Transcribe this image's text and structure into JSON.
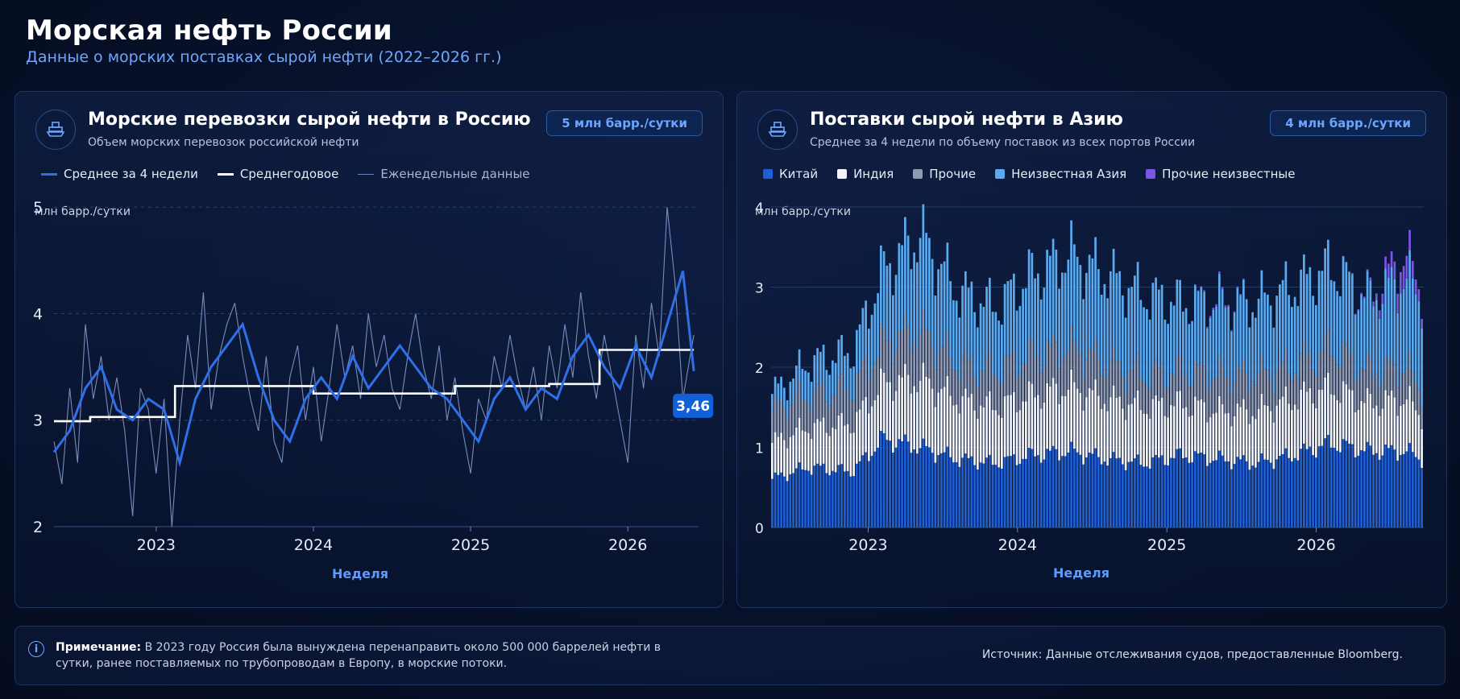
{
  "header": {
    "title": "Морская нефть России",
    "subtitle": "Данные о морских поставках сырой нефти (2022–2026 гг.)"
  },
  "left_panel": {
    "title": "Морские перевозки сырой нефти в Россию",
    "subtitle": "Объем морских перевозок российской нефти",
    "badge": "5 млн барр./сутки",
    "icon": "ship-icon",
    "legend": [
      "Среднее за 4 недели",
      "Среднегодовое",
      "Еженедельные данные"
    ]
  },
  "right_panel": {
    "title": "Поставки сырой нефти в Азию",
    "subtitle": "Среднее за 4 недели по объему поставок из всех портов России",
    "badge": "4 млн барр./сутки",
    "icon": "ship-icon"
  },
  "footer": {
    "note_label": "Примечание:",
    "note_text": "В 2023 году Россия была вынуждена перенаправить около 500 000 баррелей нефти в сутки, ранее поставляемых по трубопроводам в Европу, в морские потоки.",
    "source": "Источник: Данные отслеживания судов, предоставленные Bloomberg.",
    "icon": "info-icon"
  },
  "colors": {
    "avg4": "#2f6fe8",
    "annual": "#ffffff",
    "weekly": "#8aa2d6",
    "china": "#1e5fd4",
    "india": "#f2f4f8",
    "other": "#8f99b0",
    "unknown_asia": "#5aaaf0",
    "other_unknown": "#7a55e6",
    "accent": "#6aa6ff"
  },
  "chart_data": [
    {
      "type": "line",
      "ylabel": "млн барр./сутки",
      "xlabel": "Неделя",
      "ylim": [
        2,
        5.1
      ],
      "xlim": [
        2022.35,
        2026.45
      ],
      "y_ticks": [
        2,
        3,
        4,
        5
      ],
      "x_ticks": [
        2023,
        2024,
        2025,
        2026
      ],
      "grid": true,
      "legend_position": "top-left",
      "last_value_label": "3,46",
      "series": [
        {
          "name": "Среднее за 4 недели",
          "x": [
            2022.35,
            2022.45,
            2022.55,
            2022.65,
            2022.75,
            2022.85,
            2022.95,
            2023.05,
            2023.15,
            2023.25,
            2023.35,
            2023.45,
            2023.55,
            2023.65,
            2023.75,
            2023.85,
            2023.95,
            2024.05,
            2024.15,
            2024.25,
            2024.35,
            2024.45,
            2024.55,
            2024.65,
            2024.75,
            2024.85,
            2024.95,
            2025.05,
            2025.15,
            2025.25,
            2025.35,
            2025.45,
            2025.55,
            2025.65,
            2025.75,
            2025.85,
            2025.95,
            2026.05,
            2026.15,
            2026.25,
            2026.35,
            2026.42
          ],
          "y": [
            2.7,
            2.9,
            3.3,
            3.5,
            3.1,
            3.0,
            3.2,
            3.1,
            2.6,
            3.2,
            3.5,
            3.7,
            3.9,
            3.4,
            3.0,
            2.8,
            3.2,
            3.4,
            3.2,
            3.6,
            3.3,
            3.5,
            3.7,
            3.5,
            3.3,
            3.2,
            3.0,
            2.8,
            3.2,
            3.4,
            3.1,
            3.3,
            3.2,
            3.6,
            3.8,
            3.5,
            3.3,
            3.7,
            3.4,
            3.9,
            4.4,
            3.46
          ]
        },
        {
          "name": "Среднегодовое",
          "x": [
            2022.35,
            2022.58,
            2022.58,
            2023.12,
            2023.12,
            2024.0,
            2024.0,
            2024.9,
            2024.9,
            2025.5,
            2025.5,
            2025.82,
            2025.82,
            2026.42
          ],
          "y": [
            2.99,
            2.99,
            3.03,
            3.03,
            3.32,
            3.32,
            3.25,
            3.25,
            3.32,
            3.32,
            3.34,
            3.34,
            3.66,
            3.66
          ]
        },
        {
          "name": "Еженедельные данные",
          "x": [
            2022.35,
            2022.4,
            2022.45,
            2022.5,
            2022.55,
            2022.6,
            2022.65,
            2022.7,
            2022.75,
            2022.8,
            2022.85,
            2022.9,
            2022.95,
            2023.0,
            2023.05,
            2023.1,
            2023.15,
            2023.2,
            2023.25,
            2023.3,
            2023.35,
            2023.4,
            2023.45,
            2023.5,
            2023.55,
            2023.6,
            2023.65,
            2023.7,
            2023.75,
            2023.8,
            2023.85,
            2023.9,
            2023.95,
            2024.0,
            2024.05,
            2024.1,
            2024.15,
            2024.2,
            2024.25,
            2024.3,
            2024.35,
            2024.4,
            2024.45,
            2024.5,
            2024.55,
            2024.6,
            2024.65,
            2024.7,
            2024.75,
            2024.8,
            2024.85,
            2024.9,
            2024.95,
            2025.0,
            2025.05,
            2025.1,
            2025.15,
            2025.2,
            2025.25,
            2025.3,
            2025.35,
            2025.4,
            2025.45,
            2025.5,
            2025.55,
            2025.6,
            2025.65,
            2025.7,
            2025.75,
            2025.8,
            2025.85,
            2025.9,
            2025.95,
            2026.0,
            2026.05,
            2026.1,
            2026.15,
            2026.2,
            2026.25,
            2026.3,
            2026.35,
            2026.42
          ],
          "y": [
            2.8,
            2.4,
            3.3,
            2.6,
            3.9,
            3.2,
            3.6,
            3.0,
            3.4,
            2.9,
            2.1,
            3.3,
            3.1,
            2.5,
            3.2,
            2.0,
            3.0,
            3.8,
            3.3,
            4.2,
            3.1,
            3.6,
            3.9,
            4.1,
            3.6,
            3.2,
            2.9,
            3.6,
            2.8,
            2.6,
            3.4,
            3.7,
            3.0,
            3.5,
            2.8,
            3.3,
            3.9,
            3.4,
            3.7,
            3.2,
            4.0,
            3.5,
            3.8,
            3.3,
            3.1,
            3.6,
            4.0,
            3.5,
            3.2,
            3.7,
            3.0,
            3.4,
            2.9,
            2.5,
            3.2,
            3.0,
            3.6,
            3.3,
            3.8,
            3.4,
            3.1,
            3.5,
            3.0,
            3.7,
            3.3,
            3.9,
            3.4,
            4.2,
            3.6,
            3.2,
            3.8,
            3.4,
            3.0,
            2.6,
            3.8,
            3.3,
            4.1,
            3.6,
            5.0,
            4.3,
            3.2,
            3.8
          ]
        }
      ]
    },
    {
      "type": "bar",
      "stacked": true,
      "ylabel": "млн барр./сутки",
      "xlabel": "Неделя",
      "ylim": [
        0,
        4.1
      ],
      "xlim": [
        2022.35,
        2026.72
      ],
      "y_ticks": [
        0,
        1,
        2,
        3,
        4
      ],
      "x_ticks": [
        2023,
        2024,
        2025,
        2026
      ],
      "grid": true,
      "legend_position": "top-left",
      "n_weeks": 216,
      "series": [
        {
          "name": "Китай",
          "color": "#1e5fd4",
          "x": [
            2022.35,
            2022.6,
            2022.9,
            2023.1,
            2023.35,
            2023.6,
            2023.85,
            2024.1,
            2024.35,
            2024.6,
            2024.85,
            2025.1,
            2025.35,
            2025.6,
            2025.85,
            2026.1,
            2026.35,
            2026.6,
            2026.72
          ],
          "y": [
            0.6,
            0.75,
            0.7,
            1.1,
            1.0,
            0.85,
            0.8,
            0.9,
            0.95,
            0.85,
            0.8,
            0.9,
            0.85,
            0.8,
            0.9,
            1.05,
            0.95,
            0.95,
            0.85
          ]
        },
        {
          "name": "Индия",
          "color": "#f2f4f8",
          "x": [
            2022.35,
            2022.6,
            2022.9,
            2023.1,
            2023.35,
            2023.6,
            2023.85,
            2024.1,
            2024.35,
            2024.6,
            2024.85,
            2025.1,
            2025.35,
            2025.6,
            2025.85,
            2026.1,
            2026.35,
            2026.6,
            2026.72
          ],
          "y": [
            0.45,
            0.5,
            0.6,
            0.7,
            0.85,
            0.75,
            0.7,
            0.75,
            0.8,
            0.75,
            0.7,
            0.65,
            0.6,
            0.65,
            0.7,
            0.7,
            0.6,
            0.65,
            0.55
          ]
        },
        {
          "name": "Прочие",
          "color": "#8f99b0",
          "x": [
            2022.35,
            2022.6,
            2022.9,
            2023.1,
            2023.35,
            2023.6,
            2023.85,
            2024.1,
            2024.35,
            2024.6,
            2024.85,
            2025.1,
            2025.35,
            2025.6,
            2025.85,
            2026.1,
            2026.35,
            2026.6,
            2026.72
          ],
          "y": [
            0.4,
            0.4,
            0.45,
            0.5,
            0.6,
            0.45,
            0.45,
            0.5,
            0.5,
            0.45,
            0.4,
            0.4,
            0.45,
            0.45,
            0.4,
            0.5,
            0.4,
            0.4,
            0.3
          ]
        },
        {
          "name": "Неизвестная Азия",
          "color": "#5aaaf0",
          "x": [
            2022.35,
            2022.6,
            2022.9,
            2023.1,
            2023.35,
            2023.6,
            2023.85,
            2024.1,
            2024.35,
            2024.6,
            2024.85,
            2025.1,
            2025.35,
            2025.6,
            2025.85,
            2026.1,
            2026.35,
            2026.6,
            2026.72
          ],
          "y": [
            0.2,
            0.4,
            0.45,
            0.9,
            1.2,
            0.9,
            0.8,
            1.0,
            1.15,
            1.1,
            1.0,
            0.85,
            0.9,
            0.9,
            1.0,
            1.0,
            0.9,
            1.1,
            1.15
          ]
        },
        {
          "name": "Прочие неизвестные",
          "color": "#7a55e6",
          "x": [
            2022.35,
            2022.6,
            2022.9,
            2023.1,
            2023.35,
            2023.6,
            2023.85,
            2024.1,
            2024.35,
            2024.6,
            2024.85,
            2025.1,
            2025.35,
            2025.6,
            2025.85,
            2026.1,
            2026.35,
            2026.6,
            2026.72
          ],
          "y": [
            0,
            0,
            0,
            0,
            0,
            0,
            0,
            0,
            0,
            0,
            0,
            0,
            0.03,
            0,
            0,
            0,
            0.02,
            0.3,
            0.1
          ]
        }
      ]
    }
  ]
}
